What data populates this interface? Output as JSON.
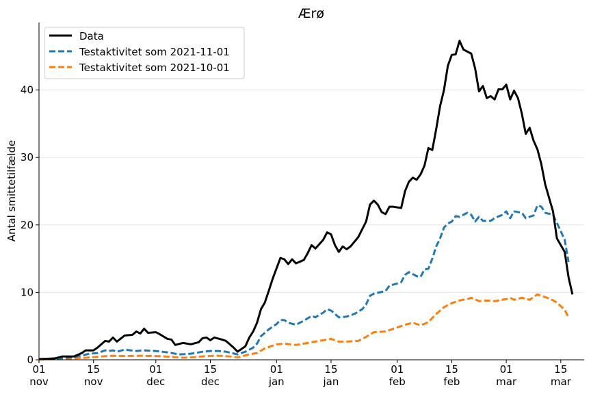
{
  "chart_data": {
    "type": "line",
    "title": "Ærø",
    "xlabel": "",
    "ylabel": "Antal smittetilfælde",
    "x_start": "2021-11-01",
    "x_end": "2022-03-21",
    "ylim": [
      0,
      50
    ],
    "yticks": [
      0,
      10,
      20,
      30,
      40
    ],
    "grid": "horizontal",
    "legend_position": "top-left",
    "xticks": [
      {
        "date": "2021-11-01",
        "top": "01",
        "bottom": "nov"
      },
      {
        "date": "2021-11-15",
        "top": "15",
        "bottom": "nov"
      },
      {
        "date": "2021-12-01",
        "top": "01",
        "bottom": "dec"
      },
      {
        "date": "2021-12-15",
        "top": "15",
        "bottom": "dec"
      },
      {
        "date": "2022-01-01",
        "top": "01",
        "bottom": "jan"
      },
      {
        "date": "2022-01-15",
        "top": "15",
        "bottom": "jan"
      },
      {
        "date": "2022-02-01",
        "top": "01",
        "bottom": "feb"
      },
      {
        "date": "2022-02-15",
        "top": "15",
        "bottom": "feb"
      },
      {
        "date": "2022-03-01",
        "top": "01",
        "bottom": "mar"
      },
      {
        "date": "2022-03-15",
        "top": "15",
        "bottom": "mar"
      }
    ],
    "series": [
      {
        "name": "Data",
        "color": "#000000",
        "dash": "solid",
        "points": [
          [
            "2021-11-01",
            0.1
          ],
          [
            "2021-11-05",
            0.2
          ],
          [
            "2021-11-07",
            0.5
          ],
          [
            "2021-11-10",
            0.5
          ],
          [
            "2021-11-12",
            1.0
          ],
          [
            "2021-11-13",
            1.4
          ],
          [
            "2021-11-15",
            1.4
          ],
          [
            "2021-11-16",
            1.8
          ],
          [
            "2021-11-18",
            2.8
          ],
          [
            "2021-11-19",
            2.7
          ],
          [
            "2021-11-20",
            3.3
          ],
          [
            "2021-11-21",
            2.7
          ],
          [
            "2021-11-23",
            3.6
          ],
          [
            "2021-11-25",
            3.7
          ],
          [
            "2021-11-26",
            4.2
          ],
          [
            "2021-11-27",
            3.9
          ],
          [
            "2021-11-28",
            4.6
          ],
          [
            "2021-11-29",
            4.0
          ],
          [
            "2021-12-01",
            4.1
          ],
          [
            "2021-12-02",
            3.8
          ],
          [
            "2021-12-04",
            3.1
          ],
          [
            "2021-12-05",
            3.0
          ],
          [
            "2021-12-06",
            2.2
          ],
          [
            "2021-12-08",
            2.5
          ],
          [
            "2021-12-10",
            2.3
          ],
          [
            "2021-12-12",
            2.6
          ],
          [
            "2021-12-13",
            3.2
          ],
          [
            "2021-12-14",
            3.3
          ],
          [
            "2021-12-15",
            2.9
          ],
          [
            "2021-12-16",
            3.3
          ],
          [
            "2021-12-18",
            3.0
          ],
          [
            "2021-12-19",
            2.8
          ],
          [
            "2021-12-21",
            1.8
          ],
          [
            "2021-12-22",
            1.2
          ],
          [
            "2021-12-24",
            2.0
          ],
          [
            "2021-12-25",
            3.3
          ],
          [
            "2021-12-26",
            4.2
          ],
          [
            "2021-12-27",
            5.5
          ],
          [
            "2021-12-28",
            7.5
          ],
          [
            "2021-12-29",
            8.5
          ],
          [
            "2021-12-30",
            10.2
          ],
          [
            "2021-12-31",
            12.0
          ],
          [
            "2022-01-02",
            15.1
          ],
          [
            "2022-01-03",
            14.9
          ],
          [
            "2022-01-04",
            14.2
          ],
          [
            "2022-01-05",
            14.9
          ],
          [
            "2022-01-06",
            14.3
          ],
          [
            "2022-01-08",
            14.8
          ],
          [
            "2022-01-09",
            15.8
          ],
          [
            "2022-01-10",
            17.0
          ],
          [
            "2022-01-11",
            16.5
          ],
          [
            "2022-01-13",
            17.8
          ],
          [
            "2022-01-14",
            18.9
          ],
          [
            "2022-01-15",
            18.6
          ],
          [
            "2022-01-16",
            17.0
          ],
          [
            "2022-01-17",
            16.0
          ],
          [
            "2022-01-18",
            16.8
          ],
          [
            "2022-01-19",
            16.4
          ],
          [
            "2022-01-20",
            16.8
          ],
          [
            "2022-01-22",
            18.2
          ],
          [
            "2022-01-24",
            20.5
          ],
          [
            "2022-01-25",
            23.0
          ],
          [
            "2022-01-26",
            23.6
          ],
          [
            "2022-01-27",
            23.0
          ],
          [
            "2022-01-28",
            21.9
          ],
          [
            "2022-01-29",
            21.6
          ],
          [
            "2022-01-30",
            22.7
          ],
          [
            "2022-01-31",
            22.7
          ],
          [
            "2022-02-02",
            22.5
          ],
          [
            "2022-02-03",
            25.0
          ],
          [
            "2022-02-04",
            26.4
          ],
          [
            "2022-02-05",
            27.0
          ],
          [
            "2022-02-06",
            26.7
          ],
          [
            "2022-02-07",
            27.5
          ],
          [
            "2022-02-08",
            28.8
          ],
          [
            "2022-02-09",
            31.4
          ],
          [
            "2022-02-10",
            31.1
          ],
          [
            "2022-02-11",
            34.2
          ],
          [
            "2022-02-12",
            37.6
          ],
          [
            "2022-02-13",
            40.0
          ],
          [
            "2022-02-14",
            43.6
          ],
          [
            "2022-02-15",
            45.2
          ],
          [
            "2022-02-16",
            45.3
          ],
          [
            "2022-02-17",
            47.3
          ],
          [
            "2022-02-18",
            46.0
          ],
          [
            "2022-02-20",
            45.4
          ],
          [
            "2022-02-21",
            43.2
          ],
          [
            "2022-02-22",
            39.8
          ],
          [
            "2022-02-23",
            40.6
          ],
          [
            "2022-02-24",
            38.8
          ],
          [
            "2022-02-25",
            39.1
          ],
          [
            "2022-02-26",
            38.6
          ],
          [
            "2022-02-27",
            40.1
          ],
          [
            "2022-02-28",
            40.1
          ],
          [
            "2022-03-01",
            40.8
          ],
          [
            "2022-03-02",
            38.6
          ],
          [
            "2022-03-03",
            39.9
          ],
          [
            "2022-03-04",
            38.8
          ],
          [
            "2022-03-05",
            36.5
          ],
          [
            "2022-03-06",
            33.5
          ],
          [
            "2022-03-07",
            34.4
          ],
          [
            "2022-03-08",
            32.5
          ],
          [
            "2022-03-09",
            31.2
          ],
          [
            "2022-03-10",
            29.0
          ],
          [
            "2022-03-11",
            26.0
          ],
          [
            "2022-03-13",
            22.0
          ],
          [
            "2022-03-14",
            18.0
          ],
          [
            "2022-03-15",
            17.0
          ],
          [
            "2022-03-16",
            16.0
          ],
          [
            "2022-03-17",
            12.2
          ],
          [
            "2022-03-18",
            9.7
          ]
        ]
      },
      {
        "name": "Testaktivitet som 2021-11-01",
        "color": "#1f77b4",
        "dash": "dashed",
        "points": [
          [
            "2021-11-01",
            0.1
          ],
          [
            "2021-11-06",
            0.2
          ],
          [
            "2021-11-10",
            0.4
          ],
          [
            "2021-11-14",
            0.9
          ],
          [
            "2021-11-16",
            1.0
          ],
          [
            "2021-11-18",
            1.4
          ],
          [
            "2021-11-19",
            1.3
          ],
          [
            "2021-11-20",
            1.4
          ],
          [
            "2021-11-21",
            1.2
          ],
          [
            "2021-11-23",
            1.5
          ],
          [
            "2021-11-26",
            1.3
          ],
          [
            "2021-11-28",
            1.4
          ],
          [
            "2021-12-01",
            1.3
          ],
          [
            "2021-12-04",
            1.1
          ],
          [
            "2021-12-07",
            0.8
          ],
          [
            "2021-12-10",
            0.9
          ],
          [
            "2021-12-13",
            1.2
          ],
          [
            "2021-12-15",
            1.3
          ],
          [
            "2021-12-17",
            1.3
          ],
          [
            "2021-12-19",
            1.2
          ],
          [
            "2021-12-22",
            0.8
          ],
          [
            "2021-12-24",
            1.2
          ],
          [
            "2021-12-26",
            1.8
          ],
          [
            "2021-12-27",
            2.4
          ],
          [
            "2021-12-28",
            3.5
          ],
          [
            "2021-12-30",
            4.5
          ],
          [
            "2022-01-01",
            5.3
          ],
          [
            "2022-01-02",
            5.9
          ],
          [
            "2022-01-03",
            5.9
          ],
          [
            "2022-01-04",
            5.5
          ],
          [
            "2022-01-06",
            5.2
          ],
          [
            "2022-01-08",
            5.8
          ],
          [
            "2022-01-10",
            6.5
          ],
          [
            "2022-01-11",
            6.3
          ],
          [
            "2022-01-13",
            7.0
          ],
          [
            "2022-01-14",
            7.5
          ],
          [
            "2022-01-15",
            7.3
          ],
          [
            "2022-01-17",
            6.3
          ],
          [
            "2022-01-19",
            6.4
          ],
          [
            "2022-01-21",
            6.8
          ],
          [
            "2022-01-23",
            7.5
          ],
          [
            "2022-01-24",
            8.2
          ],
          [
            "2022-01-25",
            9.5
          ],
          [
            "2022-01-26",
            9.8
          ],
          [
            "2022-01-29",
            10.2
          ],
          [
            "2022-01-30",
            11.0
          ],
          [
            "2022-02-01",
            11.3
          ],
          [
            "2022-02-02",
            11.5
          ],
          [
            "2022-02-03",
            12.6
          ],
          [
            "2022-02-04",
            13.0
          ],
          [
            "2022-02-06",
            12.4
          ],
          [
            "2022-02-07",
            12.3
          ],
          [
            "2022-02-08",
            13.4
          ],
          [
            "2022-02-09",
            13.5
          ],
          [
            "2022-02-10",
            15.0
          ],
          [
            "2022-02-11",
            16.8
          ],
          [
            "2022-02-12",
            18.0
          ],
          [
            "2022-02-13",
            19.6
          ],
          [
            "2022-02-14",
            20.2
          ],
          [
            "2022-02-15",
            20.5
          ],
          [
            "2022-02-16",
            21.3
          ],
          [
            "2022-02-17",
            21.2
          ],
          [
            "2022-02-18",
            21.5
          ],
          [
            "2022-02-19",
            21.8
          ],
          [
            "2022-02-20",
            21.5
          ],
          [
            "2022-02-21",
            20.5
          ],
          [
            "2022-02-22",
            21.2
          ],
          [
            "2022-02-23",
            20.6
          ],
          [
            "2022-02-25",
            20.6
          ],
          [
            "2022-02-26",
            21.0
          ],
          [
            "2022-02-28",
            21.5
          ],
          [
            "2022-03-01",
            22.0
          ],
          [
            "2022-03-02",
            21.0
          ],
          [
            "2022-03-03",
            22.0
          ],
          [
            "2022-03-05",
            21.8
          ],
          [
            "2022-03-06",
            21.0
          ],
          [
            "2022-03-08",
            21.4
          ],
          [
            "2022-03-09",
            22.9
          ],
          [
            "2022-03-10",
            22.7
          ],
          [
            "2022-03-11",
            21.8
          ],
          [
            "2022-03-13",
            21.5
          ],
          [
            "2022-03-14",
            20.3
          ],
          [
            "2022-03-16",
            17.8
          ],
          [
            "2022-03-17",
            14.5
          ]
        ]
      },
      {
        "name": "Testaktivitet som 2021-10-01",
        "color": "#ff7f0e",
        "dash": "dashed",
        "points": [
          [
            "2021-11-01",
            0.05
          ],
          [
            "2021-11-08",
            0.15
          ],
          [
            "2021-11-13",
            0.3
          ],
          [
            "2021-11-17",
            0.5
          ],
          [
            "2021-11-20",
            0.6
          ],
          [
            "2021-11-23",
            0.55
          ],
          [
            "2021-11-27",
            0.6
          ],
          [
            "2021-12-01",
            0.55
          ],
          [
            "2021-12-05",
            0.45
          ],
          [
            "2021-12-08",
            0.3
          ],
          [
            "2021-12-11",
            0.4
          ],
          [
            "2021-12-14",
            0.55
          ],
          [
            "2021-12-17",
            0.6
          ],
          [
            "2021-12-20",
            0.5
          ],
          [
            "2021-12-22",
            0.35
          ],
          [
            "2021-12-25",
            0.8
          ],
          [
            "2021-12-27",
            1.0
          ],
          [
            "2021-12-29",
            1.7
          ],
          [
            "2022-01-01",
            2.3
          ],
          [
            "2022-01-03",
            2.4
          ],
          [
            "2022-01-06",
            2.2
          ],
          [
            "2022-01-09",
            2.5
          ],
          [
            "2022-01-11",
            2.7
          ],
          [
            "2022-01-13",
            2.9
          ],
          [
            "2022-01-15",
            3.1
          ],
          [
            "2022-01-17",
            2.7
          ],
          [
            "2022-01-19",
            2.7
          ],
          [
            "2022-01-22",
            2.8
          ],
          [
            "2022-01-24",
            3.4
          ],
          [
            "2022-01-26",
            4.1
          ],
          [
            "2022-01-29",
            4.2
          ],
          [
            "2022-02-01",
            4.8
          ],
          [
            "2022-02-03",
            5.2
          ],
          [
            "2022-02-05",
            5.5
          ],
          [
            "2022-02-07",
            5.1
          ],
          [
            "2022-02-09",
            5.6
          ],
          [
            "2022-02-11",
            6.8
          ],
          [
            "2022-02-13",
            7.8
          ],
          [
            "2022-02-15",
            8.4
          ],
          [
            "2022-02-17",
            8.8
          ],
          [
            "2022-02-19",
            9.0
          ],
          [
            "2022-02-20",
            9.2
          ],
          [
            "2022-02-22",
            8.7
          ],
          [
            "2022-02-24",
            8.8
          ],
          [
            "2022-02-26",
            8.7
          ],
          [
            "2022-03-01",
            9.0
          ],
          [
            "2022-03-02",
            9.2
          ],
          [
            "2022-03-03",
            8.9
          ],
          [
            "2022-03-05",
            9.2
          ],
          [
            "2022-03-07",
            8.9
          ],
          [
            "2022-03-09",
            9.7
          ],
          [
            "2022-03-10",
            9.5
          ],
          [
            "2022-03-12",
            9.1
          ],
          [
            "2022-03-14",
            8.5
          ],
          [
            "2022-03-16",
            7.4
          ],
          [
            "2022-03-17",
            6.3
          ]
        ]
      }
    ]
  }
}
